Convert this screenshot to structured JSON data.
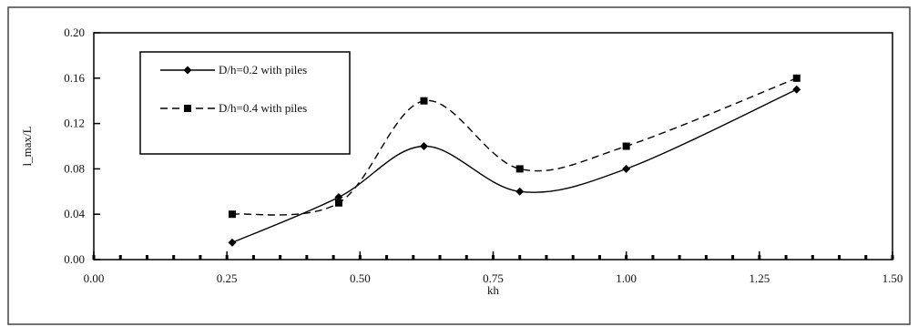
{
  "chart_data": {
    "type": "line",
    "title": "",
    "xlabel": "kh",
    "ylabel": "l_max/L",
    "xlim": [
      0.0,
      1.5
    ],
    "ylim": [
      0.0,
      0.2
    ],
    "x_ticks": [
      "0.00",
      "0.25",
      "0.50",
      "0.75",
      "1.00",
      "1.25",
      "1.50"
    ],
    "y_ticks": [
      "0.00",
      "0.04",
      "0.08",
      "0.12",
      "0.16",
      "0.20"
    ],
    "grid": false,
    "legend_position": "top-left",
    "series": [
      {
        "name": "D/h=0.2 with piles",
        "marker": "diamond",
        "line_style": "solid",
        "smooth": true,
        "color": "#000000",
        "x": [
          0.26,
          0.46,
          0.62,
          0.8,
          1.0,
          1.32
        ],
        "y": [
          0.015,
          0.055,
          0.1,
          0.06,
          0.08,
          0.15
        ]
      },
      {
        "name": "D/h=0.4 with piles",
        "marker": "square",
        "line_style": "dashed",
        "smooth": true,
        "color": "#000000",
        "x": [
          0.26,
          0.46,
          0.62,
          0.8,
          1.0,
          1.32
        ],
        "y": [
          0.04,
          0.05,
          0.14,
          0.08,
          0.1,
          0.16
        ]
      }
    ]
  }
}
